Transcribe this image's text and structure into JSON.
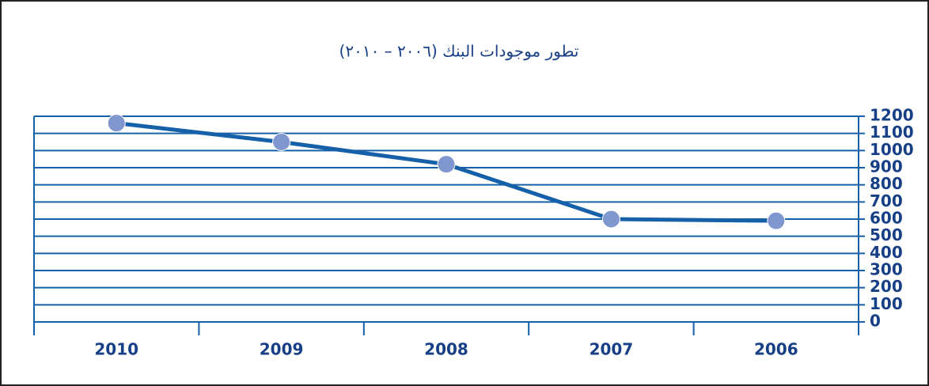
{
  "chart_data": {
    "type": "line",
    "title": "تطور موجودات البنك (٢٠٠٦ – ٢٠١٠)",
    "categories": [
      "2010",
      "2009",
      "2008",
      "2007",
      "2006"
    ],
    "series": [
      {
        "name": null,
        "color": "#1560a8",
        "marker_color": "#8096cf",
        "values": [
          1160,
          1050,
          920,
          600,
          590
        ]
      }
    ],
    "ylim": [
      0,
      1200
    ],
    "yticks": [
      0,
      100,
      200,
      300,
      400,
      500,
      600,
      700,
      800,
      900,
      1000,
      1100,
      1200
    ],
    "grid": true,
    "y_axis_side": "right"
  }
}
